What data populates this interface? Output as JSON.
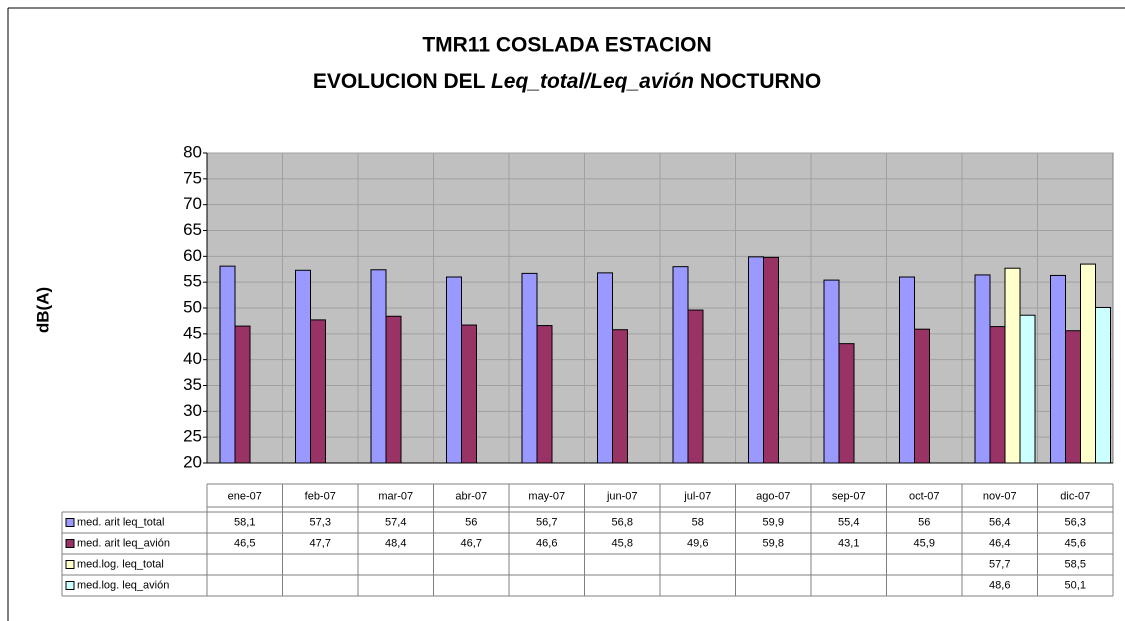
{
  "chart_data": {
    "type": "bar",
    "title": "TMR11 COSLADA ESTACION",
    "subtitle": [
      "EVOLUCION DEL",
      "Leq_total/Leq_avión",
      "NOCTURNO"
    ],
    "y_label": "dB(A)",
    "categories": [
      "ene-07",
      "feb-07",
      "mar-07",
      "abr-07",
      "may-07",
      "jun-07",
      "jul-07",
      "ago-07",
      "sep-07",
      "oct-07",
      "nov-07",
      "dic-07"
    ],
    "series": [
      {
        "name": "med. arit leq_total",
        "color": "#9999ff",
        "values": [
          58.1,
          57.3,
          57.4,
          56,
          56.7,
          56.8,
          58,
          59.9,
          55.4,
          56,
          56.4,
          56.3
        ],
        "value_labels": [
          "58,1",
          "57,3",
          "57,4",
          "56",
          "56,7",
          "56,8",
          "58",
          "59,9",
          "55,4",
          "56",
          "56,4",
          "56,3"
        ]
      },
      {
        "name": "med. arit leq_avión",
        "color": "#993366",
        "values": [
          46.5,
          47.7,
          48.4,
          46.7,
          46.6,
          45.8,
          49.6,
          59.8,
          43.1,
          45.9,
          46.4,
          45.6
        ],
        "value_labels": [
          "46,5",
          "47,7",
          "48,4",
          "46,7",
          "46,6",
          "45,8",
          "49,6",
          "59,8",
          "43,1",
          "45,9",
          "46,4",
          "45,6"
        ]
      },
      {
        "name": "med.log. leq_total",
        "color": "#ffffcc",
        "values": [
          null,
          null,
          null,
          null,
          null,
          null,
          null,
          null,
          null,
          null,
          57.7,
          58.5
        ],
        "value_labels": [
          null,
          null,
          null,
          null,
          null,
          null,
          null,
          null,
          null,
          null,
          "57,7",
          "58,5"
        ]
      },
      {
        "name": "med.log. leq_avión",
        "color": "#ccffff",
        "values": [
          null,
          null,
          null,
          null,
          null,
          null,
          null,
          null,
          null,
          null,
          48.6,
          50.1
        ],
        "value_labels": [
          null,
          null,
          null,
          null,
          null,
          null,
          null,
          null,
          null,
          null,
          "48,6",
          "50,1"
        ]
      }
    ],
    "ylim": [
      20,
      80
    ],
    "yticks": [
      20,
      25,
      30,
      35,
      40,
      45,
      50,
      55,
      60,
      65,
      70,
      75,
      80
    ],
    "grid": true,
    "plot_background": "#c0c0c0"
  }
}
